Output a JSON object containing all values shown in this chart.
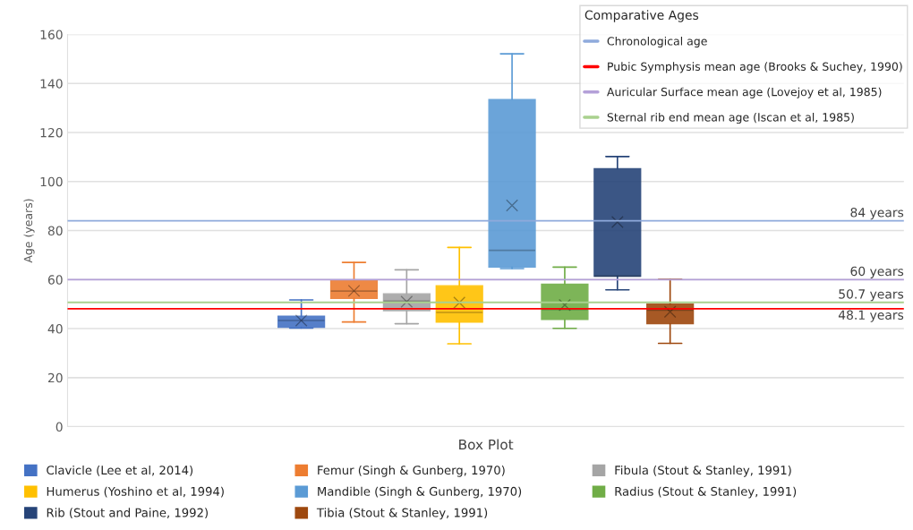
{
  "chart_data": {
    "type": "box",
    "ylabel": "Age (years)",
    "categories": [
      "Box Plot"
    ],
    "ylim": [
      0,
      160
    ],
    "yticks": [
      0,
      20,
      40,
      60,
      80,
      100,
      120,
      140,
      160
    ],
    "grid": "y",
    "legend": "bottom",
    "legend_title": "Comparative Ages",
    "series": [
      {
        "name": "Clavicle (Lee et al, 2014)",
        "color": "#4472c4",
        "boxes": [
          {
            "low": 40.2,
            "q1": 40.5,
            "median": 43.3,
            "q3": 45.1,
            "high": 51.7,
            "mean": 43.3
          }
        ]
      },
      {
        "name": "Femur (Singh & Gunberg, 1970)",
        "color": "#ed7d31",
        "boxes": [
          {
            "low": 42.7,
            "q1": 52.3,
            "median": 55.3,
            "q3": 59.7,
            "high": 67.0,
            "mean": 55.4
          }
        ]
      },
      {
        "name": "Fibula (Stout & Stanley, 1991)",
        "color": "#a5a5a5",
        "boxes": [
          {
            "low": 42.0,
            "q1": 47.3,
            "median": 51.2,
            "q3": 54.2,
            "high": 64.0,
            "mean": 51.0
          }
        ]
      },
      {
        "name": "Humerus (Yoshino et al, 1994)",
        "color": "#ffc000",
        "boxes": [
          {
            "low": 33.8,
            "q1": 42.6,
            "median": 46.6,
            "q3": 57.5,
            "high": 73.1,
            "mean": 50.6
          }
        ]
      },
      {
        "name": "Mandible (Singh & Gunberg, 1970)",
        "color": "#5b9bd5",
        "boxes": [
          {
            "low": 64.5,
            "q1": 65.1,
            "median": 71.9,
            "q3": 133.4,
            "high": 152.1,
            "mean": 90.2
          }
        ]
      },
      {
        "name": "Radius (Stout & Stanley, 1991)",
        "color": "#70ad47",
        "boxes": [
          {
            "low": 40.1,
            "q1": 43.7,
            "median": 47.8,
            "q3": 58.1,
            "high": 65.1,
            "mean": 49.6
          }
        ]
      },
      {
        "name": "Rib (Stout and Paine, 1992)",
        "color": "#264478",
        "boxes": [
          {
            "low": 55.8,
            "q1": 61.4,
            "median": 61.4,
            "q3": 105.2,
            "high": 110.2,
            "mean": 83.5
          }
        ]
      },
      {
        "name": "Tibia (Stout & Stanley, 1991)",
        "color": "#9e480e",
        "boxes": [
          {
            "low": 34.0,
            "q1": 42.0,
            "median": 47.5,
            "q3": 50.0,
            "high": 60.1,
            "mean": 46.9
          }
        ]
      }
    ],
    "ref_lines": [
      {
        "axis": "y",
        "value": 84,
        "label": "Chronological age",
        "color": "#8faadc"
      },
      {
        "axis": "y",
        "value": 48.1,
        "label": "Pubic Symphysis mean age (Brooks & Suchey, 1990)",
        "color": "#ff0000"
      },
      {
        "axis": "y",
        "value": 60,
        "label": "Auricular Surface mean age (Lovejoy et al, 1985)",
        "color": "#b4a0d8"
      },
      {
        "axis": "y",
        "value": 50.7,
        "label": "Sternal rib end mean age (Iscan et al, 1985)",
        "color": "#a9d18e"
      }
    ],
    "annotations": [
      {
        "text": "84 years",
        "y": 84
      },
      {
        "text": "60 years",
        "y": 60
      },
      {
        "text": "50.7 years",
        "y": 50.7
      },
      {
        "text": "48.1 years",
        "y": 48.1
      }
    ]
  }
}
